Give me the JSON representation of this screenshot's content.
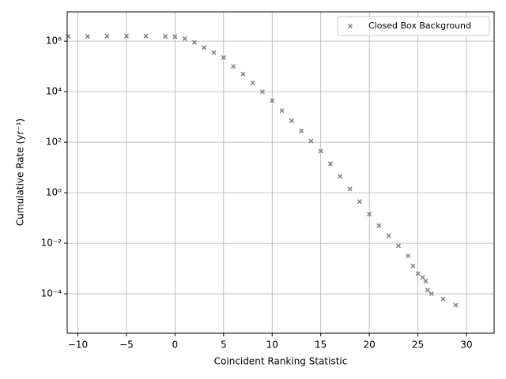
{
  "chart_data": {
    "type": "scatter",
    "xlabel": "Coincident Ranking Statistic",
    "ylabel": "Cumulative Rate (yr⁻¹)",
    "log_y": true,
    "grid": true,
    "legend": "upper right",
    "xlim": [
      -11.1,
      32.85
    ],
    "ylim": [
      2.75e-06,
      14500000
    ],
    "xticks": [
      {
        "value": -10,
        "label": "−10"
      },
      {
        "value": -5,
        "label": "−5"
      },
      0,
      5,
      10,
      15,
      20,
      25,
      30
    ],
    "yticks": [
      {
        "value": 0.0001,
        "label": "10⁻⁴"
      },
      {
        "value": 0.01,
        "label": "10⁻²"
      },
      {
        "value": 1,
        "label": "10⁰"
      },
      {
        "value": 100,
        "label": "10²"
      },
      {
        "value": 10000,
        "label": "10⁴"
      },
      {
        "value": 1000000,
        "label": "10⁶"
      }
    ],
    "series": [
      {
        "name": "Closed Box Background",
        "color": "#808080",
        "x": [
          -11,
          -9,
          -7,
          -5,
          -3,
          -1,
          0,
          1,
          2,
          3,
          4,
          5,
          6,
          7,
          8,
          9,
          10,
          11,
          12,
          13,
          14,
          15,
          16,
          17,
          18,
          19,
          20,
          21,
          22,
          23,
          24,
          24.5,
          25,
          25.5,
          25.8,
          26,
          26.4,
          27.6,
          28.9
        ],
        "values": [
          1550000,
          1550000,
          1580000,
          1580000,
          1580000,
          1550000,
          1510000,
          1260000,
          891000,
          562000,
          355000,
          224000,
          100000,
          50100,
          22400,
          10000,
          4470,
          1780,
          708,
          282,
          112,
          44.7,
          14.1,
          4.47,
          1.41,
          0.447,
          0.141,
          0.0501,
          0.02,
          0.00794,
          0.00316,
          0.00126,
          0.000631,
          0.000447,
          0.000316,
          0.000141,
          0.0001,
          6.31e-05,
          3.55e-05
        ]
      }
    ]
  }
}
